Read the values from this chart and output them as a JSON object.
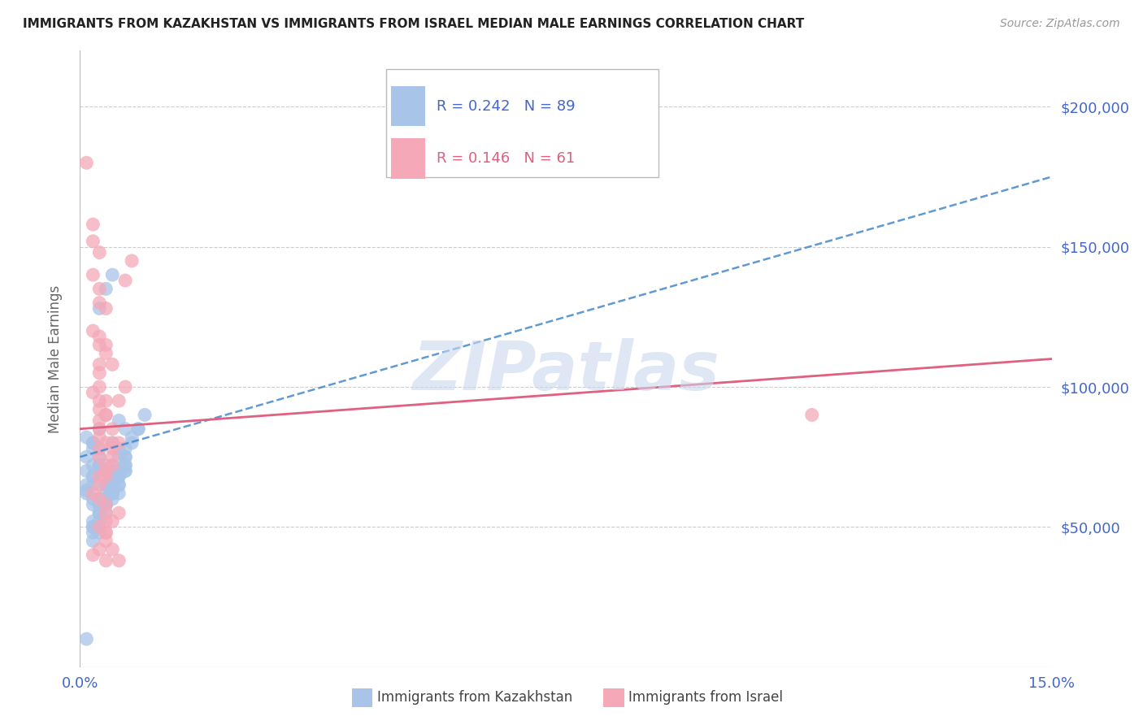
{
  "title": "IMMIGRANTS FROM KAZAKHSTAN VS IMMIGRANTS FROM ISRAEL MEDIAN MALE EARNINGS CORRELATION CHART",
  "source": "Source: ZipAtlas.com",
  "ylabel": "Median Male Earnings",
  "xlim": [
    0.0,
    0.15
  ],
  "ylim": [
    0,
    220000
  ],
  "yticks": [
    0,
    50000,
    100000,
    150000,
    200000
  ],
  "ytick_labels": [
    "",
    "$50,000",
    "$100,000",
    "$150,000",
    "$200,000"
  ],
  "xticks": [
    0.0,
    0.03,
    0.06,
    0.09,
    0.12,
    0.15
  ],
  "xtick_labels": [
    "0.0%",
    "",
    "",
    "",
    "",
    "15.0%"
  ],
  "kazakhstan_R": 0.242,
  "kazakhstan_N": 89,
  "israel_R": 0.146,
  "israel_N": 61,
  "kazakhstan_color": "#a8c4e8",
  "israel_color": "#f4a8b8",
  "trend_kaz_color": "#4488cc",
  "trend_isr_color": "#e06080",
  "watermark": "ZIPatlas",
  "background_color": "#ffffff",
  "grid_color": "#cccccc",
  "axis_label_color": "#4466cc",
  "kazakhstan_x": [
    0.001,
    0.002,
    0.001,
    0.003,
    0.002,
    0.001,
    0.002,
    0.003,
    0.001,
    0.002,
    0.003,
    0.001,
    0.002,
    0.003,
    0.002,
    0.001,
    0.003,
    0.002,
    0.004,
    0.003,
    0.002,
    0.004,
    0.003,
    0.002,
    0.005,
    0.004,
    0.005,
    0.003,
    0.004,
    0.003,
    0.002,
    0.004,
    0.005,
    0.004,
    0.003,
    0.006,
    0.005,
    0.004,
    0.003,
    0.002,
    0.005,
    0.006,
    0.005,
    0.007,
    0.006,
    0.005,
    0.004,
    0.006,
    0.005,
    0.004,
    0.003,
    0.002,
    0.004,
    0.005,
    0.003,
    0.004,
    0.005,
    0.006,
    0.005,
    0.007,
    0.002,
    0.003,
    0.005,
    0.006,
    0.007,
    0.004,
    0.003,
    0.002,
    0.004,
    0.006,
    0.007,
    0.007,
    0.006,
    0.005,
    0.008,
    0.009,
    0.007,
    0.006,
    0.005,
    0.003,
    0.007,
    0.008,
    0.007,
    0.006,
    0.005,
    0.01,
    0.009,
    0.003,
    0.001
  ],
  "kazakhstan_y": [
    75000,
    80000,
    65000,
    70000,
    68000,
    62000,
    72000,
    85000,
    63000,
    60000,
    55000,
    70000,
    68000,
    72000,
    58000,
    82000,
    78000,
    80000,
    65000,
    75000,
    78000,
    70000,
    60000,
    65000,
    68000,
    135000,
    140000,
    128000,
    65000,
    58000,
    50000,
    55000,
    62000,
    60000,
    72000,
    75000,
    68000,
    63000,
    58000,
    52000,
    70000,
    78000,
    80000,
    85000,
    88000,
    65000,
    58000,
    62000,
    68000,
    60000,
    55000,
    48000,
    58000,
    62000,
    55000,
    60000,
    65000,
    70000,
    72000,
    75000,
    45000,
    52000,
    62000,
    68000,
    72000,
    58000,
    55000,
    50000,
    60000,
    68000,
    75000,
    70000,
    65000,
    62000,
    80000,
    85000,
    72000,
    68000,
    62000,
    58000,
    78000,
    82000,
    70000,
    65000,
    60000,
    90000,
    85000,
    48000,
    10000
  ],
  "israel_x": [
    0.001,
    0.002,
    0.002,
    0.003,
    0.002,
    0.003,
    0.003,
    0.004,
    0.002,
    0.003,
    0.003,
    0.004,
    0.003,
    0.003,
    0.003,
    0.002,
    0.003,
    0.003,
    0.004,
    0.003,
    0.003,
    0.003,
    0.004,
    0.003,
    0.003,
    0.005,
    0.004,
    0.004,
    0.003,
    0.002,
    0.003,
    0.004,
    0.004,
    0.004,
    0.003,
    0.004,
    0.004,
    0.003,
    0.002,
    0.004,
    0.005,
    0.005,
    0.004,
    0.004,
    0.005,
    0.005,
    0.004,
    0.003,
    0.006,
    0.005,
    0.004,
    0.005,
    0.006,
    0.004,
    0.005,
    0.113,
    0.008,
    0.007,
    0.007,
    0.006,
    0.006
  ],
  "israel_y": [
    180000,
    158000,
    152000,
    148000,
    140000,
    135000,
    130000,
    128000,
    120000,
    118000,
    115000,
    112000,
    108000,
    105000,
    100000,
    98000,
    95000,
    92000,
    90000,
    88000,
    85000,
    82000,
    80000,
    78000,
    75000,
    72000,
    70000,
    68000,
    65000,
    62000,
    60000,
    58000,
    55000,
    52000,
    50000,
    48000,
    45000,
    42000,
    40000,
    38000,
    75000,
    80000,
    95000,
    90000,
    85000,
    78000,
    72000,
    68000,
    55000,
    52000,
    48000,
    42000,
    38000,
    115000,
    108000,
    90000,
    145000,
    138000,
    100000,
    95000,
    80000
  ]
}
